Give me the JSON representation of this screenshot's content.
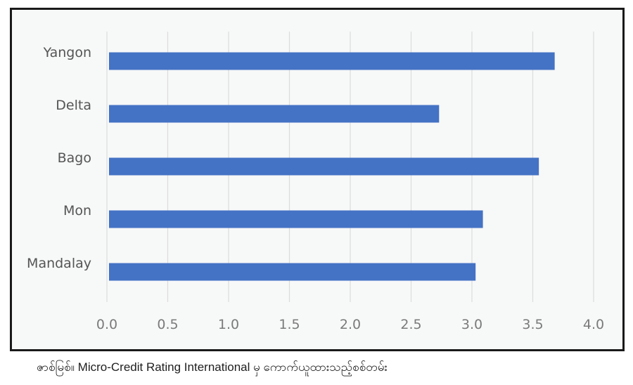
{
  "chart_data": {
    "type": "bar",
    "orientation": "horizontal",
    "categories": [
      "Yangon",
      "Delta",
      "Bago",
      "Mon",
      "Mandalay"
    ],
    "values": [
      3.68,
      2.73,
      3.55,
      3.09,
      3.03
    ],
    "xlim": [
      0,
      4.0
    ],
    "xticks": [
      "0.0",
      "0.5",
      "1.0",
      "1.5",
      "2.0",
      "2.5",
      "3.0",
      "3.5",
      "4.0"
    ],
    "grid": "vertical",
    "bar_color": "#4472c4",
    "title": "",
    "xlabel": "",
    "ylabel": ""
  },
  "caption": "ဇာစ်မြစ်။ Micro-Credit Rating International မှ ကောက်ယူထားသည့်စစ်တမ်း"
}
